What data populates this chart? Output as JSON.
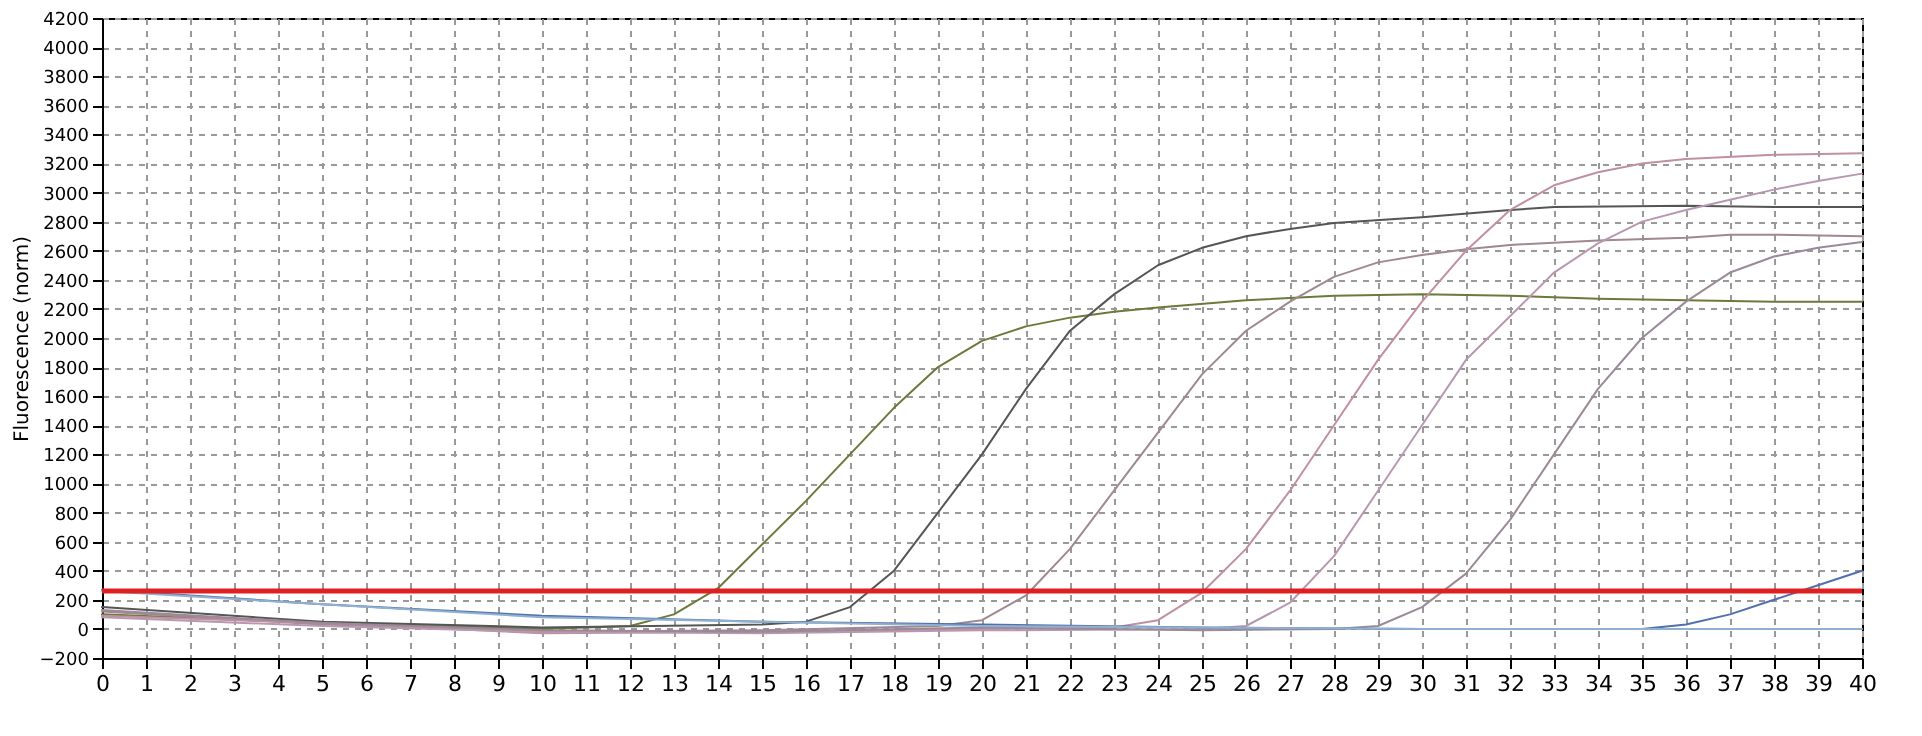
{
  "chart_data": {
    "type": "line",
    "ylabel": "Fluorescence (norm)",
    "xlim": [
      0,
      40
    ],
    "ylim": [
      -200,
      4200
    ],
    "xticks": [
      0,
      1,
      2,
      3,
      4,
      5,
      6,
      7,
      8,
      9,
      10,
      11,
      12,
      13,
      14,
      15,
      16,
      17,
      18,
      19,
      20,
      21,
      22,
      23,
      24,
      25,
      26,
      27,
      28,
      29,
      30,
      31,
      32,
      33,
      34,
      35,
      36,
      37,
      38,
      39,
      40
    ],
    "yticks": [
      -200,
      0,
      200,
      400,
      600,
      800,
      1000,
      1200,
      1400,
      1600,
      1800,
      2000,
      2200,
      2400,
      2600,
      2800,
      3000,
      3200,
      3400,
      3600,
      3800,
      4000,
      4200
    ],
    "grid": true,
    "legend": false,
    "marker": "none",
    "line_style": "solid",
    "ref_lines": [
      {
        "axis": "y",
        "value": 260,
        "color": "#e02020"
      }
    ],
    "series": [
      {
        "color": "#6b7a3a",
        "x": [
          0,
          5,
          10,
          12,
          13,
          14,
          15,
          16,
          17,
          18,
          19,
          20,
          21,
          22,
          23,
          24,
          26,
          28,
          30,
          32,
          34,
          36,
          38,
          40
        ],
        "values": [
          100,
          40,
          0,
          20,
          100,
          280,
          580,
          880,
          1200,
          1520,
          1800,
          1980,
          2080,
          2140,
          2180,
          2210,
          2260,
          2290,
          2300,
          2290,
          2270,
          2260,
          2250,
          2250
        ]
      },
      {
        "color": "#555555",
        "x": [
          0,
          5,
          10,
          15,
          16,
          17,
          18,
          19,
          20,
          21,
          22,
          23,
          24,
          25,
          26,
          27,
          28,
          30,
          32,
          33,
          36,
          38,
          40
        ],
        "values": [
          150,
          50,
          10,
          30,
          50,
          150,
          400,
          800,
          1200,
          1650,
          2050,
          2300,
          2500,
          2620,
          2700,
          2750,
          2790,
          2830,
          2880,
          2900,
          2910,
          2900,
          2900
        ]
      },
      {
        "color": "#a08890",
        "x": [
          0,
          5,
          10,
          15,
          19,
          20,
          21,
          22,
          23,
          24,
          25,
          26,
          27,
          28,
          29,
          30,
          31,
          32,
          34,
          36,
          37,
          38,
          40
        ],
        "values": [
          120,
          30,
          -20,
          -10,
          20,
          60,
          230,
          550,
          950,
          1350,
          1750,
          2050,
          2250,
          2420,
          2520,
          2570,
          2610,
          2640,
          2670,
          2690,
          2710,
          2710,
          2700
        ]
      },
      {
        "color": "#c090a0",
        "x": [
          0,
          5,
          10,
          15,
          20,
          23,
          24,
          25,
          26,
          27,
          28,
          29,
          30,
          31,
          32,
          33,
          34,
          35,
          36,
          38,
          40
        ],
        "values": [
          90,
          40,
          -30,
          -20,
          0,
          10,
          60,
          250,
          550,
          950,
          1400,
          1850,
          2250,
          2600,
          2880,
          3050,
          3140,
          3200,
          3230,
          3260,
          3270
        ]
      },
      {
        "color": "#b898b0",
        "x": [
          0,
          5,
          10,
          15,
          20,
          25,
          26,
          27,
          28,
          29,
          30,
          31,
          32,
          33,
          34,
          35,
          36,
          37,
          38,
          39,
          40
        ],
        "values": [
          80,
          20,
          -20,
          -30,
          -10,
          0,
          20,
          180,
          500,
          950,
          1400,
          1850,
          2150,
          2450,
          2650,
          2800,
          2880,
          2950,
          3020,
          3080,
          3130
        ]
      },
      {
        "color": "#9a8a98",
        "x": [
          0,
          5,
          10,
          15,
          20,
          25,
          28,
          29,
          30,
          31,
          32,
          33,
          34,
          35,
          36,
          37,
          38,
          39,
          40
        ],
        "values": [
          130,
          40,
          -10,
          -20,
          10,
          -10,
          0,
          20,
          150,
          380,
          750,
          1200,
          1650,
          2000,
          2250,
          2450,
          2560,
          2620,
          2660
        ]
      },
      {
        "color": "#5070b0",
        "x": [
          0,
          5,
          10,
          15,
          20,
          25,
          30,
          35,
          36,
          37,
          38,
          39,
          40
        ],
        "values": [
          270,
          170,
          90,
          50,
          30,
          10,
          0,
          0,
          30,
          100,
          200,
          300,
          400
        ]
      },
      {
        "color": "#90b0d0",
        "x": [
          0,
          10,
          20,
          30,
          40
        ],
        "values": [
          260,
          80,
          20,
          0,
          0
        ]
      }
    ]
  }
}
